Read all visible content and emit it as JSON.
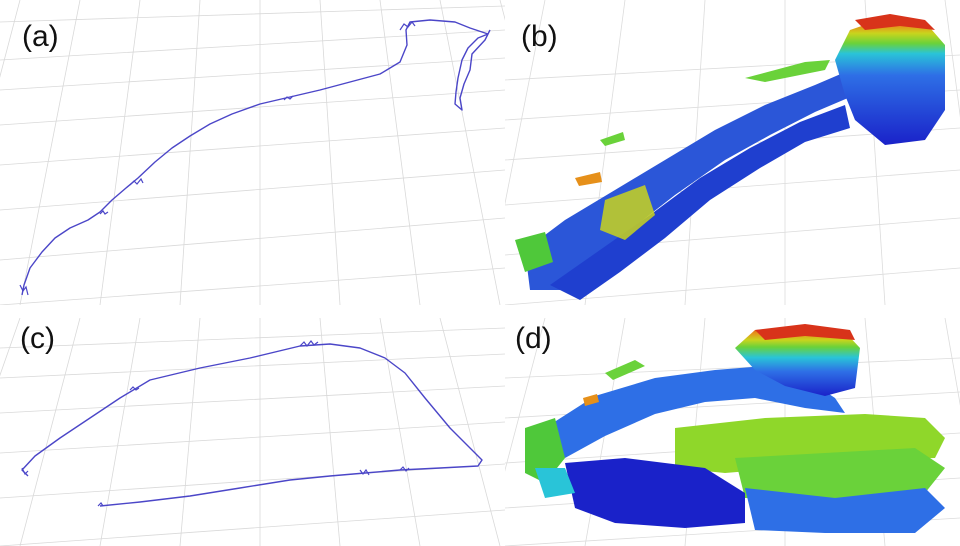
{
  "panels": [
    {
      "id": "a",
      "label": "(a)",
      "kind": "trajectory"
    },
    {
      "id": "b",
      "label": "(b)",
      "kind": "occupancy-map"
    },
    {
      "id": "c",
      "label": "(c)",
      "kind": "trajectory"
    },
    {
      "id": "d",
      "label": "(d)",
      "kind": "occupancy-map"
    }
  ],
  "colors": {
    "grid": "#d9d9d9",
    "trajectory": "#4b46c8",
    "colormap": [
      "#1a22c9",
      "#2e6fe6",
      "#29c4d8",
      "#6ad23a",
      "#c9d41d",
      "#e6901a",
      "#d8331a"
    ]
  }
}
